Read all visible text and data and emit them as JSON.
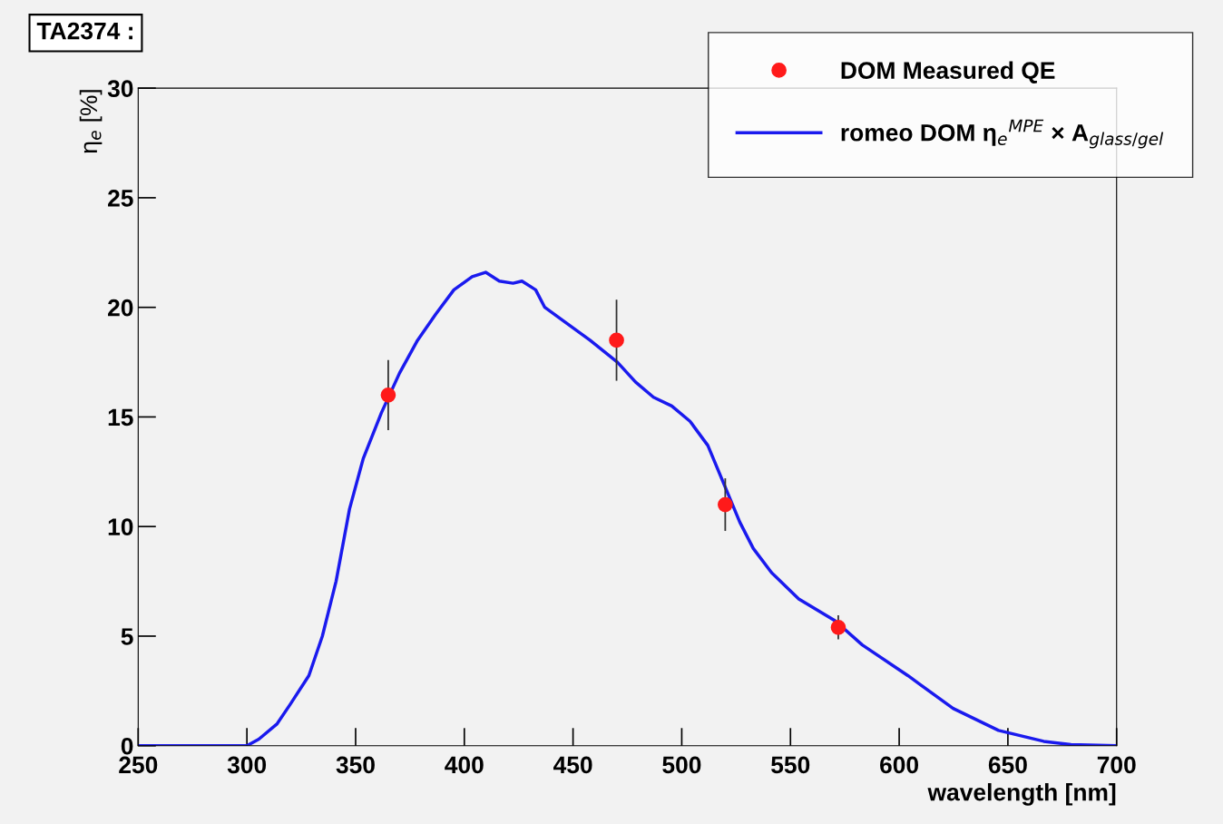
{
  "chart_data": {
    "type": "line",
    "title": "TA2374 :",
    "xlabel": "wavelength [nm]",
    "ylabel": "η$_{e}$ [%]",
    "series": [
      {
        "name": "DOM Measured QE",
        "type": "scatter",
        "color": "#ff1a1a",
        "marker": "circle",
        "x": [
          365,
          470,
          520,
          572
        ],
        "values": [
          16.0,
          18.5,
          11.0,
          5.4
        ],
        "errors": [
          1.6,
          1.85,
          1.2,
          0.55
        ]
      },
      {
        "name": "romeo DOM η$_{e}$$^{MPE}$ × A$_{glass/gel}$",
        "color": "#1a1aee",
        "marker": "none",
        "x": [
          250,
          300,
          305.5,
          313.9,
          320,
          328.5,
          334.7,
          341,
          347.2,
          353.5,
          361.9,
          370.2,
          378.5,
          386.9,
          395.2,
          403.6,
          409.8,
          416.1,
          422.4,
          426.5,
          432.8,
          437,
          445.3,
          457.8,
          470.4,
          478.7,
          487,
          495.4,
          503.8,
          512,
          520.4,
          526.7,
          532.9,
          541.3,
          553.8,
          570.5,
          583,
          604,
          624.8,
          645.7,
          666.5,
          679,
          700
        ],
        "values": [
          0,
          0,
          0.3,
          1.0,
          1.9,
          3.2,
          5.0,
          7.5,
          10.8,
          13.1,
          15.2,
          17.0,
          18.5,
          19.7,
          20.8,
          21.4,
          21.6,
          21.2,
          21.1,
          21.2,
          20.8,
          20.0,
          19.4,
          18.5,
          17.5,
          16.6,
          15.9,
          15.5,
          14.8,
          13.7,
          11.7,
          10.2,
          9.0,
          7.9,
          6.7,
          5.7,
          4.6,
          3.2,
          1.7,
          0.7,
          0.2,
          0.05,
          0
        ]
      }
    ],
    "xlim": [
      250,
      700
    ],
    "xticks": [
      250,
      300,
      350,
      400,
      450,
      500,
      550,
      600,
      650,
      700
    ],
    "ylim": [
      0,
      30
    ],
    "yticks": [
      0,
      5,
      10,
      15,
      20,
      25,
      30
    ],
    "grid": false,
    "legend": "top right"
  }
}
